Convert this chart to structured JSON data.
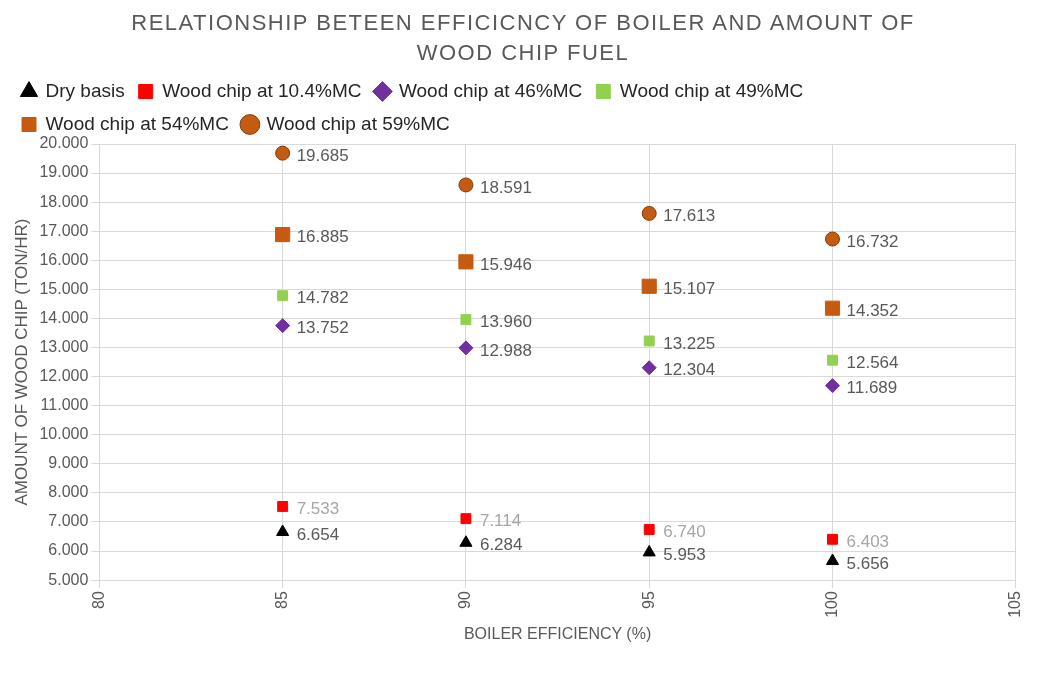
{
  "chart_data": {
    "type": "scatter",
    "title": "RELATIONSHIP BETEEN EFFICICNCY OF BOILER  AND AMOUNT OF WOOD CHIP FUEL",
    "xlabel": "BOILER EFFICIENCY (%)",
    "ylabel": "AMOUNT OF WOOD CHIP (TON/HR)",
    "x": [
      85,
      90,
      95,
      100
    ],
    "series": [
      {
        "name": "Dry basis",
        "color": "#000000",
        "marker": "triangle",
        "values": [
          6.654,
          6.284,
          5.953,
          5.656
        ],
        "value_labels": [
          "6.654",
          "6.284",
          "5.953",
          "5.656"
        ]
      },
      {
        "name": "Wood chip at 10.4%MC",
        "color": "#ff0000",
        "marker": "square",
        "values": [
          7.533,
          7.114,
          6.74,
          6.403
        ],
        "value_labels": [
          "7.533",
          "7.114",
          "6.740",
          "6.403"
        ]
      },
      {
        "name": "Wood chip at 46%MC",
        "color": "#7030a0",
        "marker": "diamond",
        "values": [
          13.752,
          12.988,
          12.304,
          11.689
        ],
        "value_labels": [
          "13.752",
          "12.988",
          "12.304",
          "11.689"
        ]
      },
      {
        "name": "Wood chip at 49%MC",
        "color": "#92d050",
        "marker": "square",
        "values": [
          14.782,
          13.96,
          13.225,
          12.564
        ],
        "value_labels": [
          "14.782",
          "13.960",
          "13.225",
          "12.564"
        ]
      },
      {
        "name": "Wood chip at 54%MC",
        "color": "#c55a11",
        "marker": "square",
        "values": [
          16.885,
          15.946,
          15.107,
          14.352
        ],
        "value_labels": [
          "16.885",
          "15.946",
          "15.107",
          "14.352"
        ]
      },
      {
        "name": "Wood chip at 59%MC",
        "color": "#c55a11",
        "marker": "circle",
        "values": [
          19.685,
          18.591,
          17.613,
          16.732
        ],
        "value_labels": [
          "19.685",
          "18.591",
          "17.613",
          "16.732"
        ]
      }
    ],
    "xlim": [
      80,
      105
    ],
    "xticks": [
      80,
      85,
      90,
      95,
      100,
      105
    ],
    "ylim": [
      5,
      20
    ],
    "yticks": [
      {
        "value": 5,
        "label": "5.000"
      },
      {
        "value": 6,
        "label": "6.000"
      },
      {
        "value": 7,
        "label": "7.000"
      },
      {
        "value": 8,
        "label": "8.000"
      },
      {
        "value": 9,
        "label": "9.000"
      },
      {
        "value": 10,
        "label": "10.000"
      },
      {
        "value": 11,
        "label": "11.000"
      },
      {
        "value": 12,
        "label": "12.000"
      },
      {
        "value": 13,
        "label": "13.000"
      },
      {
        "value": 14,
        "label": "14.000"
      },
      {
        "value": 15,
        "label": "15.000"
      },
      {
        "value": 16,
        "label": "16.000"
      },
      {
        "value": 17,
        "label": "17.000"
      },
      {
        "value": 18,
        "label": "18.000"
      },
      {
        "value": 19,
        "label": "19.000"
      },
      {
        "value": 20,
        "label": "20.000"
      }
    ],
    "grid": true,
    "legend": "top"
  }
}
